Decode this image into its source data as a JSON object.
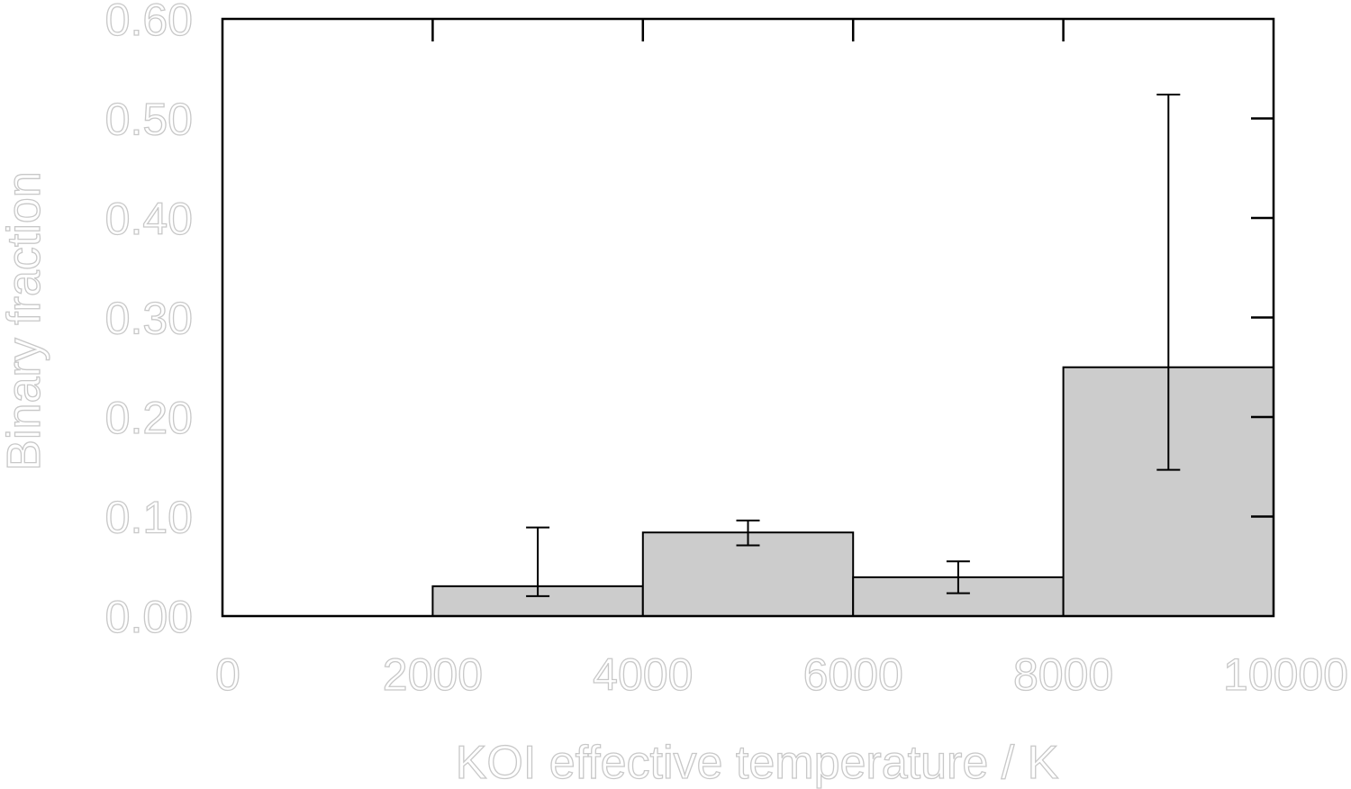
{
  "chart_data": {
    "type": "bar",
    "xlabel": "KOI effective temperature / K",
    "ylabel": "Binary fraction",
    "xlim": [
      0,
      10000
    ],
    "ylim": [
      0,
      0.6
    ],
    "x_ticks": [
      "0",
      "2000",
      "4000",
      "6000",
      "8000",
      "10000"
    ],
    "y_ticks": [
      "0.00",
      "0.10",
      "0.20",
      "0.30",
      "0.40",
      "0.50",
      "0.60"
    ],
    "bins": [
      {
        "x0": 2000,
        "x1": 4000,
        "value": 0.03,
        "err_low": 0.02,
        "err_high": 0.089
      },
      {
        "x0": 4000,
        "x1": 6000,
        "value": 0.084,
        "err_low": 0.071,
        "err_high": 0.096
      },
      {
        "x0": 6000,
        "x1": 8000,
        "value": 0.039,
        "err_low": 0.023,
        "err_high": 0.055
      },
      {
        "x0": 8000,
        "x1": 10000,
        "value": 0.25,
        "err_low": 0.147,
        "err_high": 0.524
      }
    ],
    "bar_color": "#cccccc",
    "grid": false
  }
}
